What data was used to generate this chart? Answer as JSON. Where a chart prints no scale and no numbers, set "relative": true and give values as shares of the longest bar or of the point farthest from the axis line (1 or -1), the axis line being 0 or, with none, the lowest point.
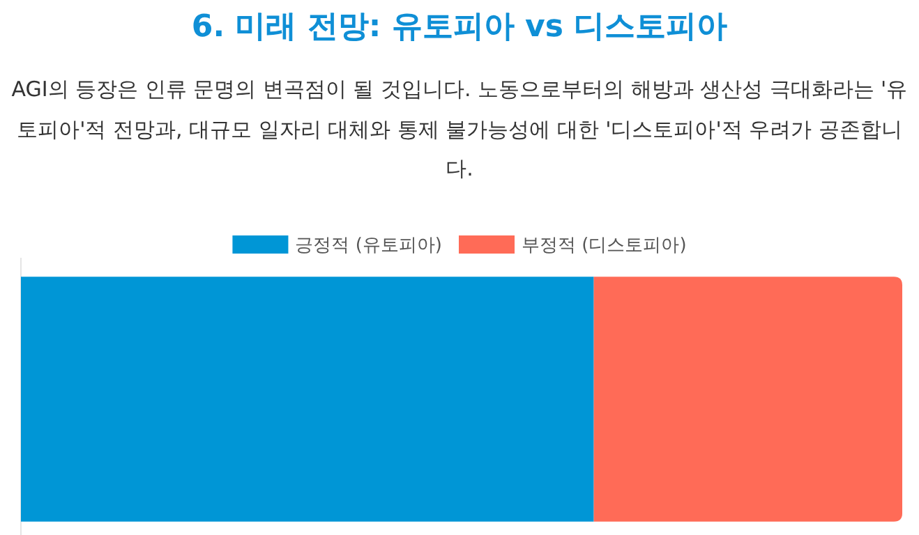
{
  "chart_data": {
    "type": "bar",
    "title": "6. 미래 전망: 유토피아 vs 디스토피아",
    "subtitle": "AGI의 등장은 인류 문명의 변곡점이 될 것입니다. 노동으로부터의 해방과 생산성 극대화라는 '유토피아'적 전망과, 대규모 일자리 대체와 통제 불가능성에 대한 '디스토피아'적 우려가 공존합니다.",
    "categories": [
      null
    ],
    "orientation": "horizontal",
    "stacked": true,
    "relative": true,
    "legend": "top",
    "series": [
      {
        "name": "긍정적 (유토피아)",
        "color": "#0096d6",
        "values": [
          0.65
        ]
      },
      {
        "name": "부정적 (디스토피아)",
        "color": "#ff6b57",
        "values": [
          0.35
        ]
      }
    ]
  }
}
